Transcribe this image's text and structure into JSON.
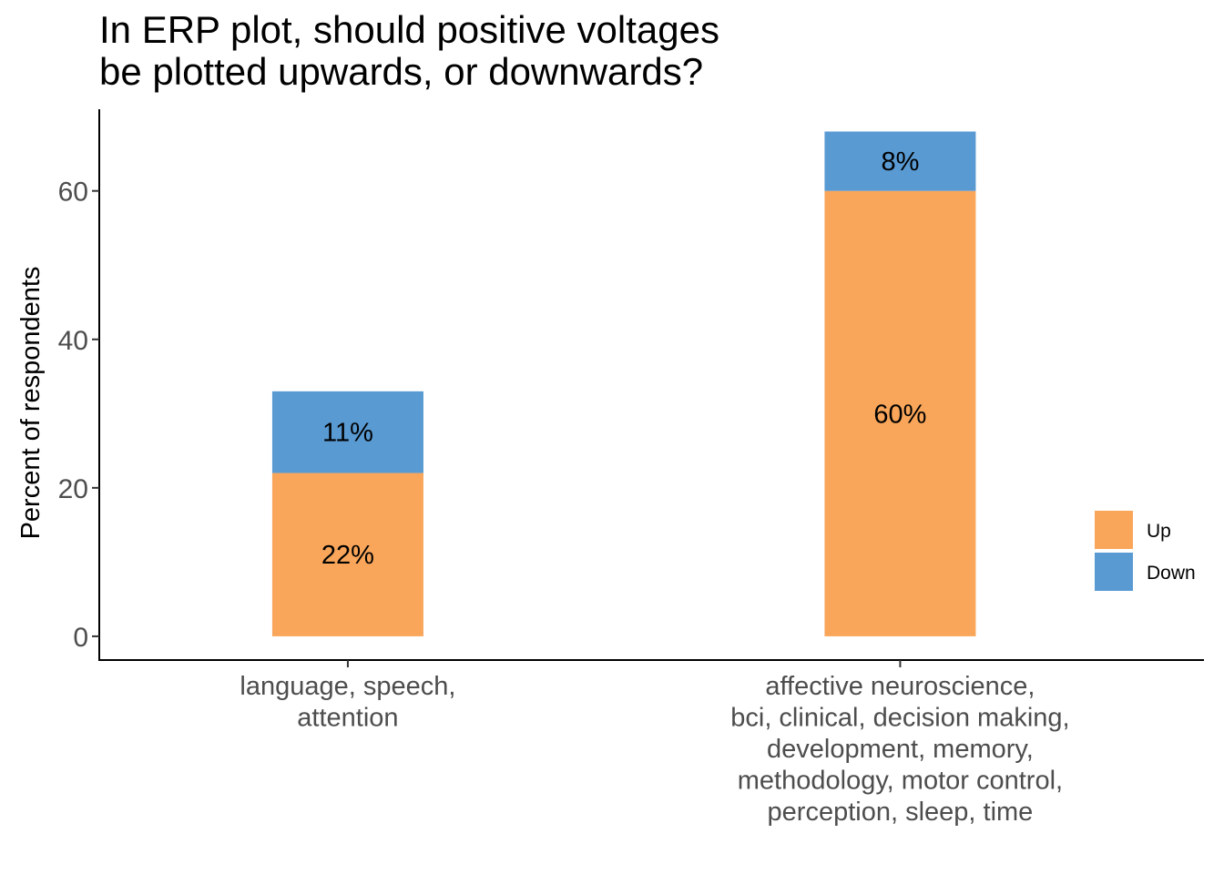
{
  "chart_data": {
    "type": "bar",
    "stacked": true,
    "title_lines": [
      "In ERP plot, should positive voltages",
      "be plotted upwards, or downwards?"
    ],
    "xlabel": "",
    "ylabel": "Percent of respondents",
    "ylim": [
      -3.2,
      71
    ],
    "yticks": [
      0,
      20,
      40,
      60
    ],
    "categories": [
      [
        "language, speech,",
        "attention"
      ],
      [
        "affective neuroscience,",
        "bci, clinical, decision making,",
        "development, memory,",
        "methodology, motor control,",
        "perception, sleep, time"
      ]
    ],
    "series": [
      {
        "name": "Up",
        "color": "#f9a65a",
        "values": [
          22,
          60
        ],
        "labels": [
          "22%",
          "60%"
        ]
      },
      {
        "name": "Down",
        "color": "#599ad3",
        "values": [
          11,
          8
        ],
        "labels": [
          "11%",
          "8%"
        ]
      }
    ],
    "grid": false,
    "legend_position": "right"
  }
}
